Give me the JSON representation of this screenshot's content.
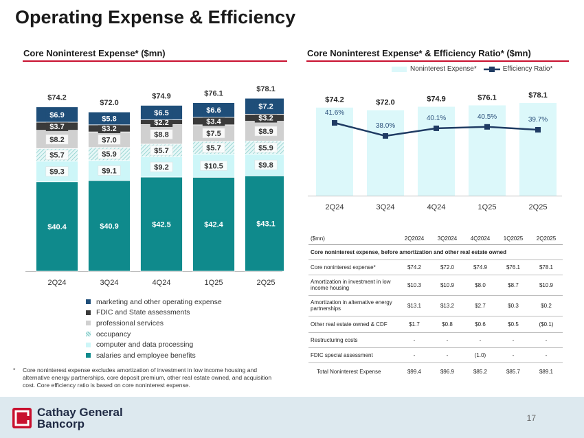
{
  "page": {
    "title": "Operating Expense & Efficiency",
    "page_number": "17",
    "logo_text": [
      "Cathay General",
      "Bancorp"
    ],
    "accent_color": "#c8102e"
  },
  "chart_data": [
    {
      "type": "bar",
      "stacked": true,
      "title": "Core Noninterest Expense* ($mn)",
      "categories": [
        "2Q24",
        "3Q24",
        "4Q24",
        "1Q25",
        "2Q25"
      ],
      "totals": [
        "$74.2",
        "$72.0",
        "$74.9",
        "$76.1",
        "$78.1"
      ],
      "ylim": [
        0,
        80
      ],
      "series": [
        {
          "name": "salaries and employee benefits",
          "color": "#0f8a8c",
          "values": [
            40.4,
            40.9,
            42.5,
            42.4,
            43.1
          ],
          "labels": [
            "$40.4",
            "$40.9",
            "$42.5",
            "$42.4",
            "$43.1"
          ]
        },
        {
          "name": "computer and data processing",
          "color": "#cdf6f8",
          "values": [
            9.3,
            9.1,
            9.2,
            10.5,
            9.8
          ],
          "labels": [
            "$9.3",
            "$9.1",
            "$9.2",
            "$10.5",
            "$9.8"
          ]
        },
        {
          "name": "occupancy",
          "color": "#a6dad8",
          "pattern": true,
          "values": [
            5.7,
            5.9,
            5.7,
            5.7,
            5.9
          ],
          "labels": [
            "$5.7",
            "$5.9",
            "$5.7",
            "$5.7",
            "$5.9"
          ]
        },
        {
          "name": "professional services",
          "color": "#d0d0d0",
          "values": [
            8.2,
            7.0,
            8.8,
            7.5,
            8.9
          ],
          "labels": [
            "$8.2",
            "$7.0",
            "$8.8",
            "$7.5",
            "$8.9"
          ]
        },
        {
          "name": "FDIC and State assessments",
          "color": "#3a3a3a",
          "values": [
            3.7,
            3.2,
            2.2,
            3.4,
            3.2
          ],
          "labels": [
            "$3.7",
            "$3.2",
            "$2.2",
            "$3.4",
            "$3.2"
          ]
        },
        {
          "name": "marketing and other operating expense",
          "color": "#1f4e79",
          "values": [
            6.9,
            5.8,
            6.5,
            6.6,
            7.2
          ],
          "labels": [
            "$6.9",
            "$5.8",
            "$6.5",
            "$6.6",
            "$7.2"
          ]
        }
      ],
      "legend_order": [
        "marketing and other operating expense",
        "FDIC and State assessments",
        "professional services",
        "occupancy",
        "computer and data processing",
        "salaries and employee benefits"
      ],
      "legend_placement": "bottom"
    },
    {
      "type": "bar+line",
      "title": "Core Noninterest Expense* & Efficiency Ratio* ($mn)",
      "categories": [
        "2Q24",
        "3Q24",
        "4Q24",
        "1Q25",
        "2Q25"
      ],
      "legend_placement": "top",
      "series": [
        {
          "name": "Noninterest Expense*",
          "type": "bar",
          "color": "#dcf8fa",
          "values": [
            74.2,
            72.0,
            74.9,
            76.1,
            78.1
          ],
          "labels": [
            "$74.2",
            "$72.0",
            "$74.9",
            "$76.1",
            "$78.1"
          ]
        },
        {
          "name": "Efficiency Ratio*",
          "type": "line",
          "color": "#1f3b63",
          "values": [
            41.6,
            38.0,
            40.1,
            40.5,
            39.7
          ],
          "labels": [
            "41.6%",
            "38.0%",
            "40.1%",
            "40.5%",
            "39.7%"
          ]
        }
      ]
    }
  ],
  "footnote": {
    "star": "*",
    "text": "Core noninterest expense excludes amortization of investment in low income housing and alternative energy partnerships, core deposit premium, other real estate owned, and acquisition cost. Core efficiency ratio is based on core noninterest expense."
  },
  "table": {
    "headers": [
      "($mn)",
      "2Q2024",
      "3Q2024",
      "4Q2024",
      "1Q2025",
      "2Q2025"
    ],
    "section": "Core noninterest expense, before amortization and other real estate owned",
    "rows": [
      {
        "label": "Core noninterest expense*",
        "values": [
          "$74.2",
          "$72.0",
          "$74.9",
          "$76.1",
          "$78.1"
        ]
      },
      {
        "label": "Amortization in investment in low income housing",
        "values": [
          "$10.3",
          "$10.9",
          "$8.0",
          "$8.7",
          "$10.9"
        ]
      },
      {
        "label": "Amortization in alternative energy partnerships",
        "values": [
          "$13.1",
          "$13.2",
          "$2.7",
          "$0.3",
          "$0.2"
        ]
      },
      {
        "label": "Other real estate owned & CDF",
        "values": [
          "$1.7",
          "$0.8",
          "$0.6",
          "$0.5",
          "($0.1)"
        ]
      },
      {
        "label": "Restructuring costs",
        "values": [
          "-",
          "-",
          "-",
          "-",
          "-"
        ]
      },
      {
        "label": "FDIC special assessment",
        "values": [
          "-",
          "-",
          "(1.0)",
          "-",
          "-"
        ]
      },
      {
        "label": "Total Noninterest Expense",
        "values": [
          "$99.4",
          "$96.9",
          "$85.2",
          "$85.7",
          "$89.1"
        ]
      }
    ]
  }
}
